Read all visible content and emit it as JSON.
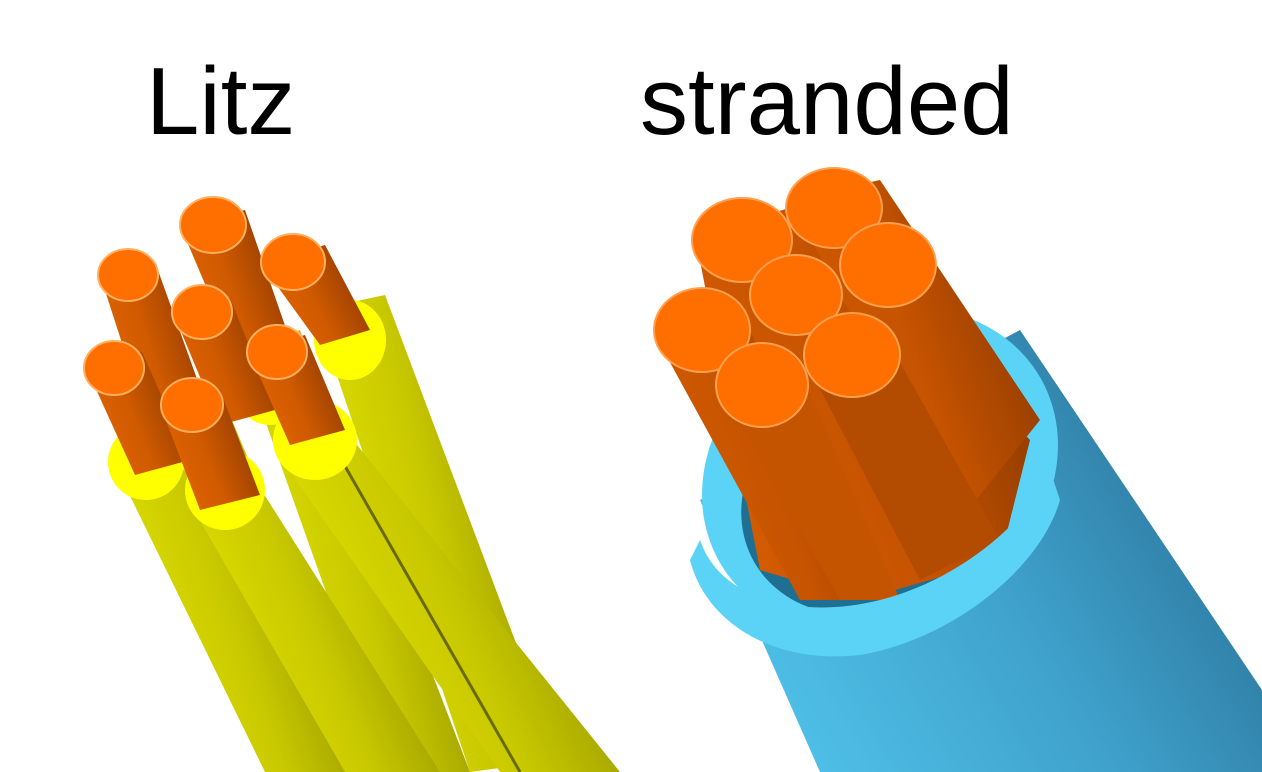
{
  "labels": {
    "left": "Litz",
    "right": "stranded"
  },
  "colors": {
    "copper_face": "#ff6f00",
    "copper_side_light": "#d96000",
    "copper_side_dark": "#9a3f00",
    "enamel_ring": "#ffff00",
    "enamel_side_light": "#d9d900",
    "enamel_side_dark": "#8f8f00",
    "jacket_ring": "#5bd3f7",
    "jacket_side_light": "#48b3da",
    "jacket_side_dark": "#2e7fa3",
    "background": "#ffffff"
  },
  "icons": {
    "left": "litz-wire-bundle",
    "right": "stranded-wire-bundle"
  }
}
